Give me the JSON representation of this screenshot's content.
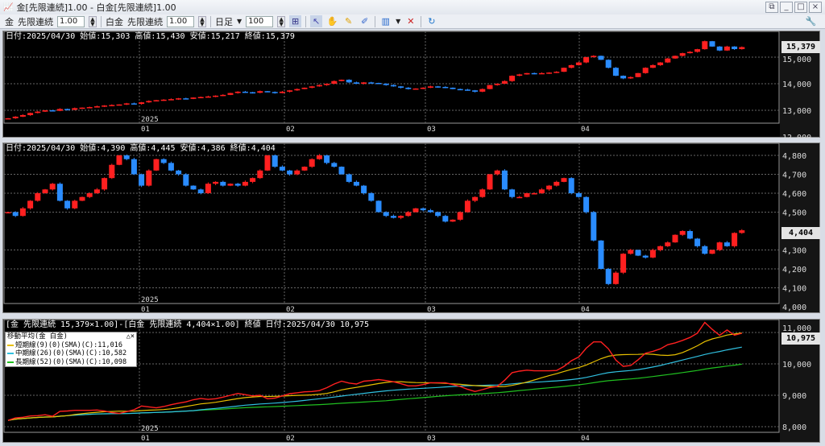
{
  "window": {
    "title": "金[先限連続]1.00 - 白金[先限連続]1.00",
    "controls": [
      "restore",
      "minimize",
      "maximize",
      "close"
    ]
  },
  "toolbar": {
    "item1": "金",
    "contract1": "先限連続",
    "mult1": "1.00",
    "item2": "白金",
    "contract2": "先限連続",
    "mult2": "1.00",
    "period": "日足",
    "bars": "100"
  },
  "colors": {
    "up": "#ff2020",
    "down": "#2a8cff",
    "spread": "#ff2020",
    "ma_short": "#e8c000",
    "ma_mid": "#30c0e0",
    "ma_long": "#20c020"
  },
  "x_labels": {
    "year": "2025",
    "months": [
      "01",
      "02",
      "03",
      "04"
    ]
  },
  "gold": {
    "header": "日付:2025/04/30 始値:15,303 高値:15,430 安値:15,217 終値:15,379",
    "last": "15,379",
    "ticks": [
      "15,000",
      "14,000",
      "13,000",
      "12,000"
    ],
    "closes": [
      12700,
      12760,
      12820,
      12900,
      12950,
      13000,
      12980,
      13050,
      13020,
      13080,
      13100,
      13120,
      13150,
      13180,
      13200,
      13220,
      13260,
      13240,
      13300,
      13350,
      13380,
      13400,
      13420,
      13450,
      13430,
      13480,
      13500,
      13520,
      13550,
      13580,
      13650,
      13700,
      13680,
      13660,
      13720,
      13690,
      13650,
      13700,
      13750,
      13800,
      13850,
      13900,
      13950,
      14000,
      14100,
      14150,
      14050,
      14000,
      14050,
      14030,
      14000,
      13950,
      13900,
      13850,
      13800,
      13820,
      13850,
      13900,
      13880,
      13850,
      13800,
      13780,
      13750,
      13700,
      13800,
      13950,
      14000,
      14100,
      14300,
      14350,
      14400,
      14380,
      14400,
      14420,
      14450,
      14600,
      14700,
      14800,
      15000,
      15050,
      14900,
      14600,
      14300,
      14200,
      14250,
      14400,
      14600,
      14700,
      14800,
      14950,
      15050,
      15150,
      15200,
      15300,
      15600,
      15400,
      15250,
      15400,
      15303,
      15379
    ]
  },
  "platinum": {
    "header": "日付:2025/04/30 始値:4,390 高値:4,445 安値:4,386 終値:4,404",
    "last": "4,404",
    "ticks": [
      "4,800",
      "4,700",
      "4,600",
      "4,500",
      "4,300",
      "4,200",
      "4,100",
      "4,000"
    ],
    "closes": [
      4500,
      4480,
      4520,
      4560,
      4600,
      4620,
      4650,
      4560,
      4520,
      4560,
      4580,
      4600,
      4620,
      4680,
      4750,
      4800,
      4780,
      4700,
      4640,
      4720,
      4780,
      4760,
      4720,
      4700,
      4640,
      4620,
      4600,
      4650,
      4660,
      4640,
      4650,
      4640,
      4660,
      4680,
      4720,
      4800,
      4740,
      4720,
      4700,
      4720,
      4740,
      4780,
      4800,
      4760,
      4740,
      4700,
      4660,
      4640,
      4600,
      4560,
      4500,
      4480,
      4470,
      4480,
      4500,
      4520,
      4510,
      4500,
      4480,
      4450,
      4460,
      4500,
      4560,
      4580,
      4620,
      4700,
      4720,
      4620,
      4580,
      4580,
      4600,
      4600,
      4620,
      4640,
      4660,
      4680,
      4600,
      4580,
      4500,
      4350,
      4200,
      4120,
      4180,
      4280,
      4300,
      4270,
      4260,
      4300,
      4320,
      4340,
      4380,
      4400,
      4360,
      4320,
      4280,
      4300,
      4340,
      4320,
      4390,
      4404
    ]
  },
  "spread": {
    "header": "[金 先限連続 15,379×1.00]-[白金 先限連続 4,404×1.00] 終値 日付:2025/04/30 10,975",
    "last": "10,975",
    "ticks": [
      "11,000",
      "10,000",
      "9,000",
      "8,000"
    ],
    "legend": {
      "title": "移動平均(金 白金)",
      "short": "短期線(9)(0)(SMA)(C):11,016",
      "mid": "中期線(26)(0)(SMA)(C):10,582",
      "long": "長期線(52)(0)(SMA)(C):10,098"
    }
  }
}
